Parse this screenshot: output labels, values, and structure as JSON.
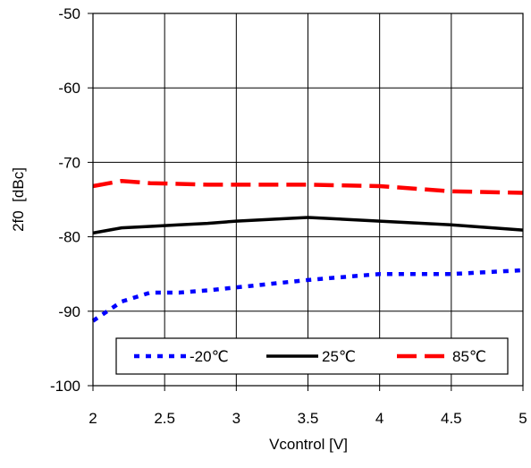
{
  "chart_data": {
    "type": "line",
    "title": "",
    "xlabel": "Vcontrol [V]",
    "ylabel": "2f0  [dBc]",
    "xlim": [
      2,
      5
    ],
    "ylim": [
      -100,
      -50
    ],
    "xticks": [
      2,
      2.5,
      3,
      3.5,
      4,
      4.5,
      5
    ],
    "yticks": [
      -100,
      -90,
      -80,
      -70,
      -60,
      -50
    ],
    "grid": true,
    "legend_position": "bottom",
    "series": [
      {
        "name": "-20℃",
        "color": "#0000ff",
        "style": "dotted",
        "x": [
          2.0,
          2.2,
          2.4,
          2.6,
          2.8,
          3.0,
          3.5,
          4.0,
          4.5,
          5.0
        ],
        "y": [
          -91.3,
          -88.7,
          -87.5,
          -87.5,
          -87.2,
          -86.8,
          -85.8,
          -85.0,
          -85.0,
          -84.5
        ]
      },
      {
        "name": "25℃",
        "color": "#000000",
        "style": "solid",
        "x": [
          2.0,
          2.2,
          2.4,
          2.6,
          2.8,
          3.0,
          3.5,
          4.0,
          4.5,
          5.0
        ],
        "y": [
          -79.5,
          -78.8,
          -78.6,
          -78.4,
          -78.2,
          -77.9,
          -77.4,
          -77.9,
          -78.4,
          -79.1
        ]
      },
      {
        "name": "85℃",
        "color": "#ff0000",
        "style": "dashed",
        "x": [
          2.0,
          2.2,
          2.4,
          2.6,
          2.8,
          3.0,
          3.5,
          4.0,
          4.5,
          5.0
        ],
        "y": [
          -73.2,
          -72.5,
          -72.8,
          -72.9,
          -73.0,
          -73.0,
          -73.0,
          -73.2,
          -73.9,
          -74.1
        ]
      }
    ]
  }
}
